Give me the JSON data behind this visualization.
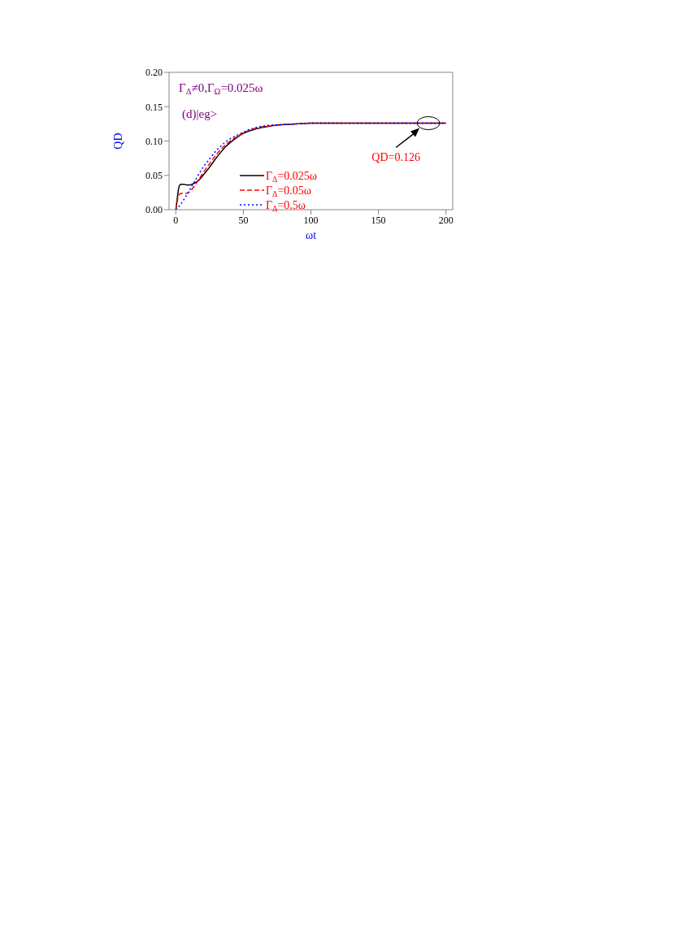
{
  "chart_data": {
    "type": "line",
    "xlabel": "ωt",
    "ylabel": "QD",
    "xlim": [
      -5,
      205
    ],
    "ylim": [
      0,
      0.2
    ],
    "xticks": [
      0,
      50,
      100,
      150,
      200
    ],
    "yticks": [
      {
        "value": 0,
        "label": "0.00"
      },
      0.05,
      {
        "value": 0.1,
        "label": "0.10"
      },
      0.15,
      {
        "value": 0.2,
        "label": "0.20"
      }
    ],
    "grid": false,
    "legend": "bottom",
    "marker": "none",
    "annotations": [
      "Γ$_{Δ}$≠0,Γ$_{Ω}$=0.025ω",
      "(d)|eg>",
      {
        "text": "QD=0.126",
        "x": 187,
        "y": 0.126
      }
    ],
    "series": [
      {
        "name": "Γ$_{Δ}$=0.025ω",
        "color": "#000000",
        "line_style": "solid",
        "x": [
          0,
          1,
          2,
          3,
          4,
          6,
          8,
          10,
          12,
          15,
          18,
          21,
          25,
          29,
          33,
          37,
          41,
          45,
          50,
          55,
          60,
          65,
          70,
          80,
          90,
          100,
          120,
          150,
          175,
          200
        ],
        "values": [
          0,
          0.015,
          0.03,
          0.036,
          0.037,
          0.037,
          0.036,
          0.036,
          0.037,
          0.04,
          0.045,
          0.052,
          0.062,
          0.073,
          0.083,
          0.092,
          0.099,
          0.105,
          0.111,
          0.115,
          0.118,
          0.12,
          0.122,
          0.124,
          0.125,
          0.126,
          0.126,
          0.126,
          0.126,
          0.126
        ]
      },
      {
        "name": "Γ$_{Δ}$=0.05ω",
        "color": "#ff0000",
        "line_style": "dashed",
        "x": [
          0,
          1,
          2,
          3,
          5,
          8,
          10,
          12,
          15,
          18,
          21,
          25,
          29,
          33,
          37,
          41,
          45,
          50,
          55,
          60,
          65,
          70,
          80,
          90,
          100,
          120,
          150,
          175,
          200
        ],
        "values": [
          0,
          0.012,
          0.02,
          0.023,
          0.024,
          0.024,
          0.026,
          0.03,
          0.038,
          0.047,
          0.056,
          0.067,
          0.078,
          0.087,
          0.095,
          0.101,
          0.106,
          0.112,
          0.116,
          0.119,
          0.121,
          0.122,
          0.124,
          0.125,
          0.126,
          0.126,
          0.126,
          0.126,
          0.126
        ]
      },
      {
        "name": "Γ$_{Δ}$=0.5ω",
        "color": "#0000ff",
        "line_style": "dotted",
        "x": [
          0,
          2,
          4,
          6,
          8,
          10,
          12,
          15,
          18,
          21,
          25,
          29,
          33,
          37,
          41,
          45,
          50,
          55,
          60,
          65,
          70,
          80,
          90,
          100,
          120,
          150,
          175,
          200
        ],
        "values": [
          0,
          0.004,
          0.009,
          0.015,
          0.021,
          0.028,
          0.035,
          0.045,
          0.055,
          0.064,
          0.074,
          0.084,
          0.092,
          0.099,
          0.104,
          0.108,
          0.113,
          0.117,
          0.12,
          0.122,
          0.123,
          0.124,
          0.125,
          0.126,
          0.126,
          0.126,
          0.126,
          0.126
        ]
      }
    ]
  }
}
